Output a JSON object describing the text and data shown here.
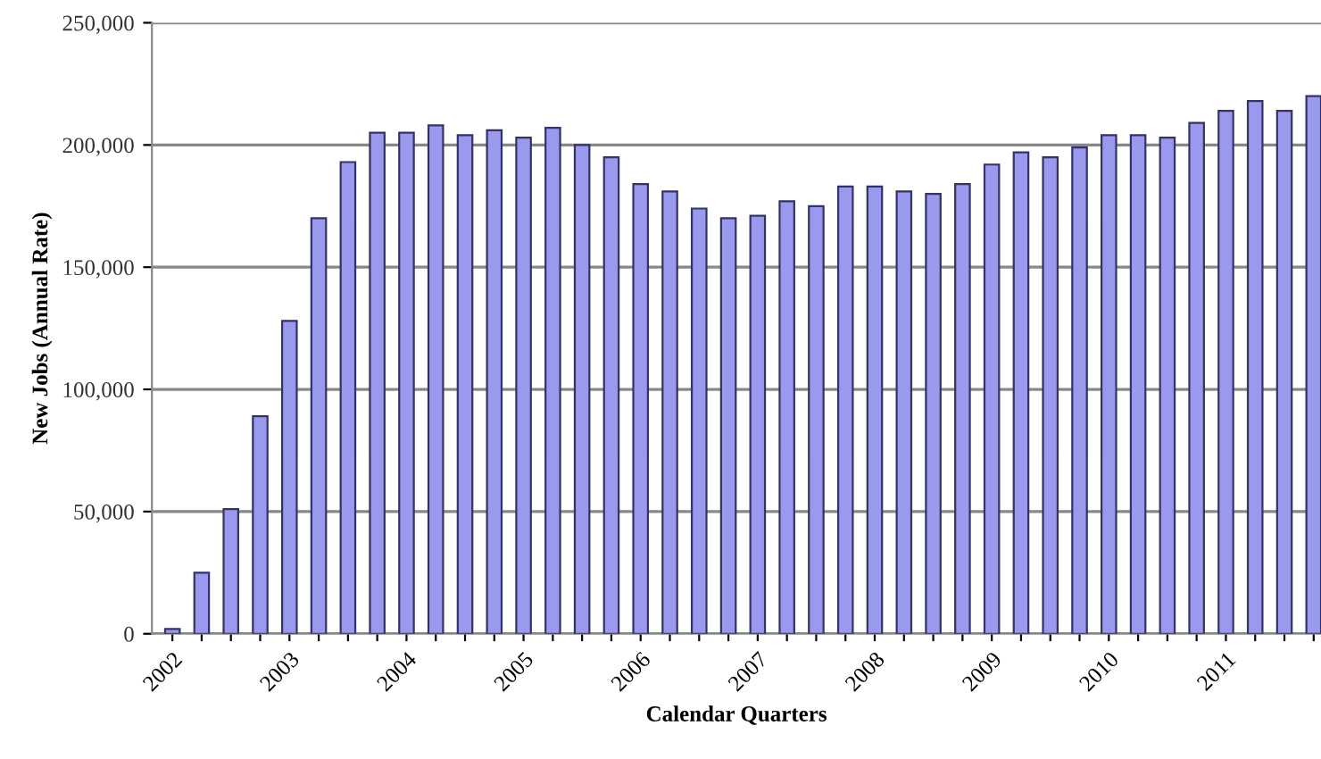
{
  "chart_data": {
    "type": "bar",
    "xlabel": "Calendar Quarters",
    "ylabel": "New Jobs (Annual Rate)",
    "categories": [
      "2002",
      null,
      null,
      null,
      "2003",
      null,
      null,
      null,
      "2004",
      null,
      null,
      null,
      "2005",
      null,
      null,
      null,
      "2006",
      null,
      null,
      null,
      "2007",
      null,
      null,
      null,
      "2008",
      null,
      null,
      null,
      "2009",
      null,
      null,
      null,
      "2010",
      null,
      null,
      null,
      "2011",
      null,
      null,
      null
    ],
    "series": [
      {
        "color": "#9999ee",
        "values": [
          2000,
          25000,
          51000,
          89000,
          128000,
          170000,
          193000,
          205000,
          205000,
          208000,
          204000,
          206000,
          203000,
          207000,
          200000,
          195000,
          184000,
          181000,
          174000,
          170000,
          171000,
          177000,
          175000,
          183000,
          183000,
          181000,
          180000,
          184000,
          192000,
          197000,
          195000,
          199000,
          204000,
          204000,
          203000,
          209000,
          214000,
          218000,
          214000,
          220000
        ]
      }
    ],
    "ylim": [
      0,
      250000
    ],
    "yticks": [
      {
        "value": 0,
        "label": "0"
      },
      {
        "value": 50000,
        "label": "50,000"
      },
      {
        "value": 100000,
        "label": "100,000"
      },
      {
        "value": 150000,
        "label": "150,000"
      },
      {
        "value": 200000,
        "label": "200,000"
      },
      {
        "value": 250000,
        "label": "250,000"
      }
    ],
    "grid": "y"
  }
}
